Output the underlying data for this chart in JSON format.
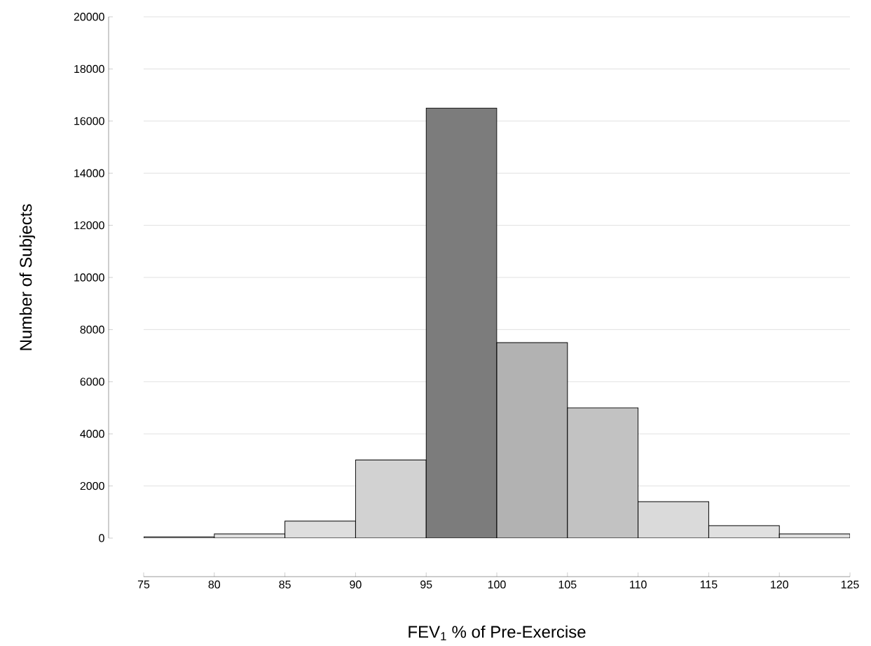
{
  "chart_data": {
    "type": "histogram",
    "xlabel": "FEV$_{1}$ % of Pre-Exercise",
    "ylabel": "Number of Subjects",
    "bins": [
      75,
      80,
      85,
      90,
      95,
      100,
      105,
      110,
      115,
      120,
      125
    ],
    "values": [
      50,
      160,
      650,
      3000,
      16500,
      7500,
      5000,
      1400,
      480,
      160
    ],
    "colors": [
      "#e0e0e0",
      "#e0e0e0",
      "#dedede",
      "#d2d2d2",
      "#7c7c7c",
      "#b2b2b2",
      "#c2c2c2",
      "#dadada",
      "#e0e0e0",
      "#e0e0e0"
    ],
    "xlim": [
      75,
      125
    ],
    "xticks": [
      75,
      80,
      85,
      90,
      95,
      100,
      105,
      110,
      115,
      120,
      125
    ],
    "ylim": [
      0,
      20000
    ],
    "yticks": [
      0,
      2000,
      4000,
      6000,
      8000,
      10000,
      12000,
      14000,
      16000,
      18000,
      20000
    ],
    "grid": "y"
  }
}
